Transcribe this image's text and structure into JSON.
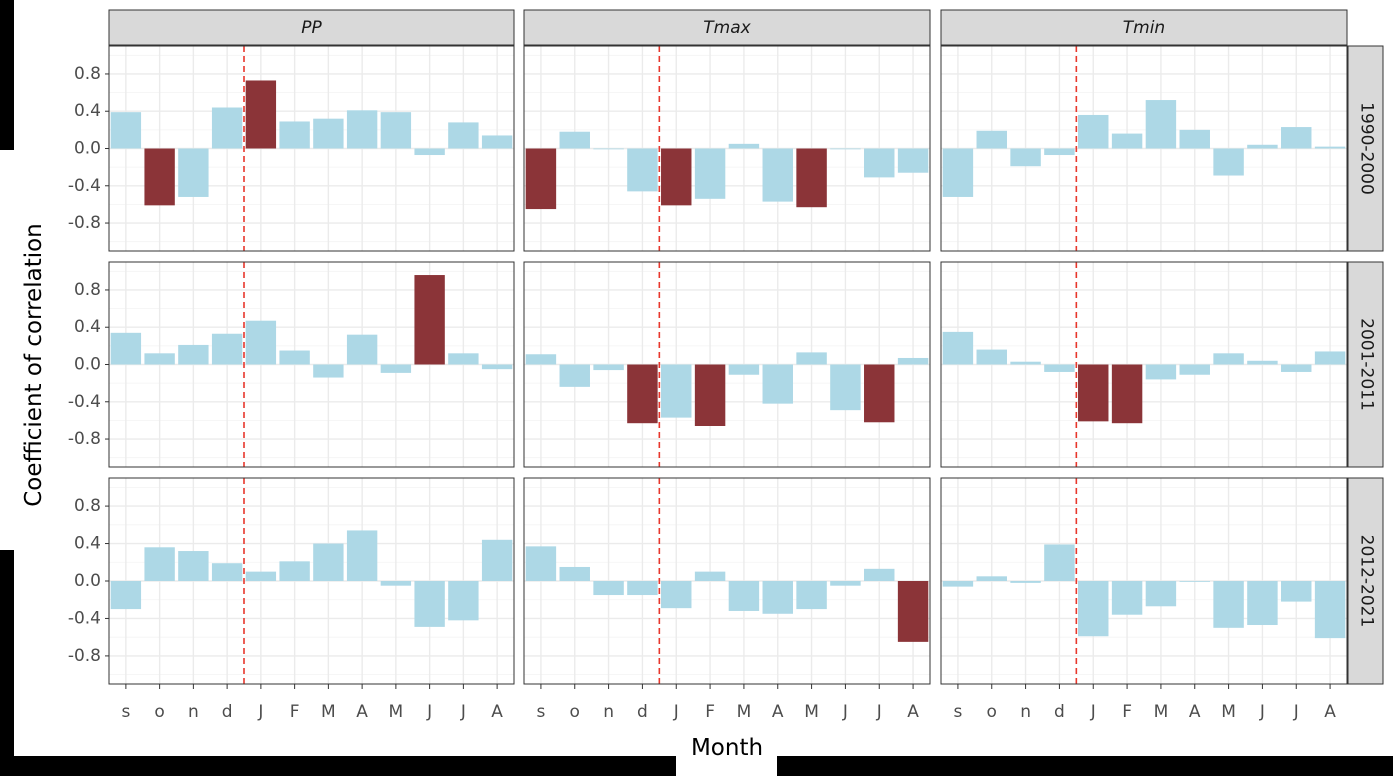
{
  "chart_data": {
    "type": "bar",
    "xlabel": "Month",
    "ylabel": "Coefficient of correlation",
    "categories": [
      "s",
      "o",
      "n",
      "d",
      "J",
      "F",
      "M",
      "A",
      "M",
      "J",
      "J",
      "A"
    ],
    "yticks": [
      "0.8",
      "0.4",
      "0.0",
      "-0.4",
      "-0.8"
    ],
    "ylim": [
      -1.1,
      1.1
    ],
    "reference_line_after_category": "d",
    "colors": {
      "not_significant": "#add8e6",
      "significant": "#8b3438",
      "reference_line": "#e8372c",
      "strip": "#d9d9d9",
      "grid": "#ebebeb"
    },
    "panels": [
      {
        "column": "PP",
        "row": "1990-2000",
        "values": [
          0.39,
          -0.61,
          -0.52,
          0.44,
          0.73,
          0.29,
          0.32,
          0.41,
          0.39,
          -0.07,
          0.28,
          0.14
        ],
        "significant": [
          false,
          true,
          false,
          false,
          true,
          false,
          false,
          false,
          false,
          false,
          false,
          false
        ]
      },
      {
        "column": "Tmax",
        "row": "1990-2000",
        "values": [
          -0.65,
          0.18,
          0.0,
          -0.46,
          -0.61,
          -0.54,
          0.05,
          -0.57,
          -0.63,
          0.0,
          -0.31,
          -0.26
        ],
        "significant": [
          true,
          false,
          false,
          false,
          true,
          false,
          false,
          false,
          true,
          false,
          false,
          false
        ]
      },
      {
        "column": "Tmin",
        "row": "1990-2000",
        "values": [
          -0.52,
          0.19,
          -0.19,
          -0.07,
          0.36,
          0.16,
          0.52,
          0.2,
          -0.29,
          0.04,
          0.23,
          0.02
        ],
        "significant": [
          false,
          false,
          false,
          false,
          false,
          false,
          false,
          false,
          false,
          false,
          false,
          false
        ]
      },
      {
        "column": "PP",
        "row": "2001-2011",
        "values": [
          0.34,
          0.12,
          0.21,
          0.33,
          0.47,
          0.15,
          -0.14,
          0.32,
          -0.09,
          0.96,
          0.12,
          -0.05
        ],
        "significant": [
          false,
          false,
          false,
          false,
          false,
          false,
          false,
          false,
          false,
          true,
          false,
          false
        ]
      },
      {
        "column": "Tmax",
        "row": "2001-2011",
        "values": [
          0.11,
          -0.24,
          -0.06,
          -0.63,
          -0.57,
          -0.66,
          -0.11,
          -0.42,
          0.13,
          -0.49,
          -0.62,
          0.07
        ],
        "significant": [
          false,
          false,
          false,
          true,
          false,
          true,
          false,
          false,
          false,
          false,
          true,
          false
        ]
      },
      {
        "column": "Tmin",
        "row": "2001-2011",
        "values": [
          0.35,
          0.16,
          0.03,
          -0.08,
          -0.61,
          -0.63,
          -0.16,
          -0.11,
          0.12,
          0.04,
          -0.08,
          0.14
        ],
        "significant": [
          false,
          false,
          false,
          false,
          true,
          true,
          false,
          false,
          false,
          false,
          false,
          false
        ]
      },
      {
        "column": "PP",
        "row": "2012-2021",
        "values": [
          -0.3,
          0.36,
          0.32,
          0.19,
          0.1,
          0.21,
          0.4,
          0.54,
          -0.05,
          -0.49,
          -0.42,
          0.44
        ],
        "significant": [
          false,
          false,
          false,
          false,
          false,
          false,
          false,
          false,
          false,
          false,
          false,
          false
        ]
      },
      {
        "column": "Tmax",
        "row": "2012-2021",
        "values": [
          0.37,
          0.15,
          -0.15,
          -0.15,
          -0.29,
          0.1,
          -0.32,
          -0.35,
          -0.3,
          -0.05,
          0.13,
          -0.65
        ],
        "significant": [
          false,
          false,
          false,
          false,
          false,
          false,
          false,
          false,
          false,
          false,
          false,
          true
        ]
      },
      {
        "column": "Tmin",
        "row": "2012-2021",
        "values": [
          -0.06,
          0.05,
          -0.02,
          0.39,
          -0.59,
          -0.36,
          -0.27,
          0.0,
          -0.5,
          -0.47,
          -0.22,
          -0.61
        ],
        "significant": [
          false,
          false,
          false,
          false,
          false,
          false,
          false,
          false,
          false,
          false,
          false,
          false
        ]
      }
    ],
    "column_strips": [
      "PP",
      "Tmax",
      "Tmin"
    ],
    "row_strips": [
      "1990-2000",
      "2001-2011",
      "2012-2021"
    ],
    "grid": true,
    "legend": "none"
  }
}
